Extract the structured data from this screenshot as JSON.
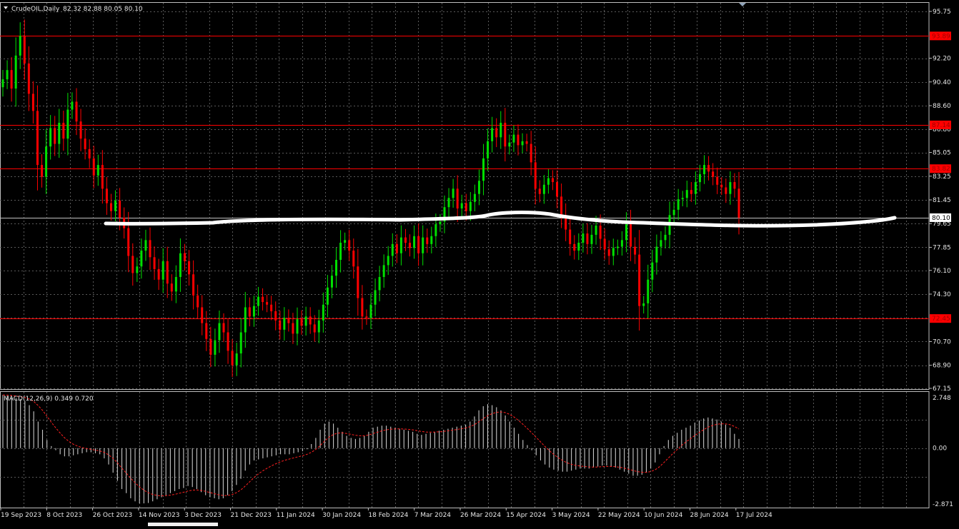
{
  "header": {
    "symbol_label": "CrudeOIL,Daily",
    "ohlc_label": "82.32 82.88 80.05 80.10"
  },
  "colors": {
    "background": "#000000",
    "grid": "#5a5a5a",
    "bull": "#00e000",
    "bear": "#ff0000",
    "level_line": "#ff0000",
    "level_label_bg": "#ff0000",
    "price_label_bg": "#ffffff",
    "trend_stroke": "#ffffff",
    "macd_hist": "#c8c8c8",
    "macd_signal": "#ff2020",
    "axis_text": "#e6e6e6"
  },
  "chart_data": [
    {
      "type": "candlestick",
      "name": "CrudeOIL,Daily",
      "ylim": [
        67.15,
        95.75
      ],
      "y_ticks": [
        "95.75",
        "92.20",
        "90.40",
        "88.60",
        "86.80",
        "85.05",
        "83.25",
        "81.45",
        "79.65",
        "77.85",
        "76.10",
        "74.30",
        "70.70",
        "68.90",
        "67.15"
      ],
      "x_labels": [
        "19 Sep 2023",
        "8 Oct 2023",
        "26 Oct 2023",
        "14 Nov 2023",
        "3 Dec 2023",
        "21 Dec 2023",
        "11 Jan 2024",
        "30 Jan 2024",
        "18 Feb 2024",
        "7 Mar 2024",
        "26 Mar 2024",
        "15 Apr 2024",
        "3 May 2024",
        "22 May 2024",
        "10 Jun 2024",
        "28 Jun 2024",
        "17 Jul 2024"
      ],
      "current_price": {
        "label": "80.10",
        "value": 80.1
      },
      "levels": [
        {
          "label": "93.89",
          "value": 93.89
        },
        {
          "label": "87.14",
          "value": 87.14
        },
        {
          "label": "83.82",
          "value": 83.82
        },
        {
          "label": "72.45",
          "value": 72.45
        }
      ],
      "closes": [
        90.6,
        91.3,
        89.9,
        92.4,
        93.9,
        91.8,
        89.5,
        88.2,
        84.1,
        83.2,
        85.5,
        86.9,
        85.7,
        87.3,
        86.1,
        88.3,
        88.9,
        87.4,
        86.1,
        85.3,
        84.6,
        83.3,
        84.1,
        82.3,
        81.2,
        80.6,
        81.4,
        80.1,
        79.3,
        77.2,
        75.9,
        76.4,
        77.6,
        78.4,
        77.1,
        76.2,
        75.4,
        76.8,
        75.1,
        74.5,
        75.6,
        77.4,
        76.8,
        75.8,
        74.2,
        73.3,
        72.1,
        70.9,
        69.7,
        70.8,
        72.1,
        71.4,
        70.0,
        68.9,
        69.8,
        71.4,
        73.3,
        72.6,
        73.4,
        74.1,
        73.7,
        73.5,
        73.0,
        72.3,
        71.6,
        72.5,
        72.1,
        71.3,
        72.4,
        71.9,
        72.6,
        72.0,
        71.4,
        72.3,
        73.5,
        74.8,
        75.7,
        76.9,
        78.2,
        78.4,
        77.6,
        76.4,
        74.0,
        72.6,
        72.5,
        73.5,
        74.6,
        75.6,
        76.5,
        77.2,
        78.1,
        77.4,
        78.6,
        78.2,
        77.8,
        78.7,
        77.4,
        78.6,
        78.1,
        78.7,
        79.6,
        79.8,
        80.9,
        81.6,
        82.3,
        80.8,
        81.2,
        80.6,
        81.3,
        81.9,
        82.9,
        84.6,
        85.9,
        86.9,
        86.2,
        87.3,
        85.5,
        85.8,
        86.4,
        85.6,
        85.9,
        85.7,
        84.3,
        82.3,
        81.9,
        82.6,
        83.1,
        82.8,
        81.7,
        80.3,
        79.2,
        78.1,
        77.6,
        78.2,
        78.9,
        78.1,
        78.8,
        79.5,
        78.5,
        77.7,
        77.2,
        77.8,
        77.9,
        78.4,
        79.6,
        77.9,
        77.3,
        73.4,
        73.6,
        75.4,
        76.7,
        77.9,
        78.4,
        78.8,
        80.3,
        80.7,
        81.5,
        81.6,
        82.2,
        81.9,
        82.8,
        83.4,
        84.1,
        83.6,
        83.2,
        82.6,
        82.4,
        81.9,
        82.8,
        82.3,
        80.1
      ],
      "bull_color": "#00e000",
      "bear_color": "#ff0000"
    },
    {
      "type": "bar",
      "name": "MACD(12,26,9)",
      "header_label": "MACD(12,26,9) 0.349 0.720",
      "ylim": [
        -2.871,
        2.748
      ],
      "y_ticks": [
        "2.748",
        "0.00",
        "-2.871"
      ],
      "histogram": [
        2.6,
        2.55,
        2.5,
        2.45,
        2.4,
        2.3,
        2.1,
        1.8,
        1.3,
        0.9,
        0.4,
        0.1,
        -0.1,
        -0.3,
        -0.4,
        -0.4,
        -0.35,
        -0.3,
        -0.25,
        -0.2,
        -0.2,
        -0.25,
        -0.3,
        -0.5,
        -0.8,
        -1.2,
        -1.6,
        -2.0,
        -2.2,
        -2.45,
        -2.6,
        -2.7,
        -2.7,
        -2.68,
        -2.6,
        -2.5,
        -2.4,
        -2.3,
        -2.2,
        -2.1,
        -2.0,
        -1.95,
        -1.85,
        -1.9,
        -2.0,
        -2.15,
        -2.3,
        -2.4,
        -2.45,
        -2.5,
        -2.45,
        -2.3,
        -2.1,
        -1.8,
        -1.5,
        -1.1,
        -0.8,
        -0.6,
        -0.55,
        -0.5,
        -0.45,
        -0.4,
        -0.35,
        -0.3,
        -0.3,
        -0.3,
        -0.25,
        -0.2,
        -0.15,
        -0.05,
        0.2,
        0.5,
        0.9,
        1.2,
        1.3,
        1.2,
        1.0,
        0.8,
        0.6,
        0.5,
        0.45,
        0.5,
        0.6,
        0.8,
        1.0,
        1.05,
        1.1,
        1.1,
        1.05,
        1.0,
        0.95,
        0.9,
        0.85,
        0.8,
        0.7,
        0.65,
        0.7,
        0.75,
        0.8,
        0.85,
        0.9,
        0.95,
        1.0,
        1.05,
        1.1,
        1.15,
        1.3,
        1.55,
        1.85,
        2.05,
        2.15,
        2.1,
        2.0,
        1.85,
        1.6,
        1.3,
        1.0,
        0.7,
        0.4,
        0.15,
        -0.1,
        -0.35,
        -0.6,
        -0.8,
        -0.95,
        -1.05,
        -1.1,
        -1.15,
        -1.15,
        -1.1,
        -1.05,
        -1.0,
        -1.0,
        -1.0,
        -0.95,
        -0.9,
        -0.85,
        -0.85,
        -0.9,
        -0.95,
        -1.05,
        -1.15,
        -1.25,
        -1.35,
        -1.35,
        -1.3,
        -1.2,
        -1.0,
        -0.7,
        -0.3,
        0.1,
        0.4,
        0.6,
        0.75,
        0.9,
        1.0,
        1.1,
        1.25,
        1.35,
        1.45,
        1.5,
        1.45,
        1.4,
        1.3,
        1.15,
        1.0,
        0.7,
        0.45
      ],
      "bar_color": "#c8c8c8",
      "signal_color": "#ff2020"
    }
  ]
}
